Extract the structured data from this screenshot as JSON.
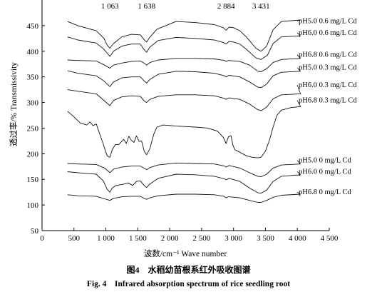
{
  "chart_data": {
    "type": "line",
    "xlabel": "波数/cm⁻¹ Wave number",
    "ylabel": "透过率/% Transmissivity",
    "xlim": [
      0,
      4500
    ],
    "ylim": [
      50,
      500
    ],
    "x_ticks": [
      "0",
      "500",
      "1 000",
      "1 500",
      "2 000",
      "2 500",
      "3 000",
      "3 500",
      "4 000",
      "4 500"
    ],
    "y_ticks": [
      "50",
      "100",
      "150",
      "200",
      "250",
      "300",
      "350",
      "400",
      "450"
    ],
    "peak_annotations": [
      {
        "label": "1 063",
        "x": 1063
      },
      {
        "label": "1 638",
        "x": 1638
      },
      {
        "label": "2 884",
        "x": 2884
      },
      {
        "label": "3 431",
        "x": 3431
      }
    ],
    "series": [
      {
        "name": "pH5.0 0.6 mg/L Cd",
        "points": [
          [
            400,
            458
          ],
          [
            560,
            450
          ],
          [
            850,
            440
          ],
          [
            970,
            425
          ],
          [
            1020,
            412
          ],
          [
            1063,
            406
          ],
          [
            1120,
            415
          ],
          [
            1250,
            428
          ],
          [
            1400,
            433
          ],
          [
            1540,
            432
          ],
          [
            1610,
            421
          ],
          [
            1640,
            418
          ],
          [
            1680,
            426
          ],
          [
            1800,
            443
          ],
          [
            2100,
            458
          ],
          [
            2400,
            456
          ],
          [
            2700,
            452
          ],
          [
            2840,
            446
          ],
          [
            2884,
            441
          ],
          [
            2930,
            447
          ],
          [
            3000,
            446
          ],
          [
            3100,
            440
          ],
          [
            3200,
            428
          ],
          [
            3350,
            406
          ],
          [
            3431,
            400
          ],
          [
            3520,
            410
          ],
          [
            3620,
            442
          ],
          [
            3750,
            458
          ],
          [
            4050,
            461
          ]
        ],
        "label_y": 455
      },
      {
        "name": "pH6.0 0.6 mg/L Cd",
        "points": [
          [
            400,
            428
          ],
          [
            560,
            422
          ],
          [
            850,
            416
          ],
          [
            960,
            405
          ],
          [
            1063,
            390
          ],
          [
            1120,
            400
          ],
          [
            1250,
            410
          ],
          [
            1400,
            414
          ],
          [
            1540,
            414
          ],
          [
            1600,
            403
          ],
          [
            1638,
            398
          ],
          [
            1690,
            408
          ],
          [
            1820,
            421
          ],
          [
            2100,
            427
          ],
          [
            2400,
            425
          ],
          [
            2700,
            422
          ],
          [
            2840,
            417
          ],
          [
            2884,
            414
          ],
          [
            2930,
            419
          ],
          [
            3000,
            418
          ],
          [
            3100,
            414
          ],
          [
            3200,
            404
          ],
          [
            3350,
            387
          ],
          [
            3431,
            384
          ],
          [
            3530,
            392
          ],
          [
            3620,
            415
          ],
          [
            3750,
            428
          ],
          [
            4050,
            430
          ]
        ],
        "label_y": 432
      },
      {
        "name": "pH6.8 0.6 mg/L Cd",
        "points": [
          [
            400,
            383
          ],
          [
            560,
            382
          ],
          [
            850,
            381
          ],
          [
            980,
            373
          ],
          [
            1063,
            367
          ],
          [
            1120,
            373
          ],
          [
            1250,
            377
          ],
          [
            1400,
            380
          ],
          [
            1540,
            381
          ],
          [
            1610,
            376
          ],
          [
            1640,
            373
          ],
          [
            1690,
            378
          ],
          [
            1820,
            383
          ],
          [
            2100,
            386
          ],
          [
            2400,
            386
          ],
          [
            2700,
            385
          ],
          [
            2860,
            382
          ],
          [
            2884,
            380
          ],
          [
            2920,
            382
          ],
          [
            3100,
            380
          ],
          [
            3250,
            373
          ],
          [
            3380,
            361
          ],
          [
            3431,
            360
          ],
          [
            3520,
            366
          ],
          [
            3620,
            378
          ],
          [
            3750,
            384
          ],
          [
            4050,
            386
          ]
        ],
        "label_y": 389
      },
      {
        "name": "pH5.0 0.3 mg/L Cd",
        "points": [
          [
            400,
            362
          ],
          [
            560,
            357
          ],
          [
            850,
            352
          ],
          [
            960,
            343
          ],
          [
            1063,
            331
          ],
          [
            1120,
            340
          ],
          [
            1250,
            348
          ],
          [
            1400,
            350
          ],
          [
            1540,
            350
          ],
          [
            1600,
            342
          ],
          [
            1638,
            338
          ],
          [
            1690,
            345
          ],
          [
            1820,
            355
          ],
          [
            2100,
            361
          ],
          [
            2400,
            360
          ],
          [
            2700,
            357
          ],
          [
            2860,
            352
          ],
          [
            2884,
            350
          ],
          [
            2930,
            353
          ],
          [
            3100,
            350
          ],
          [
            3250,
            340
          ],
          [
            3380,
            330
          ],
          [
            3431,
            329
          ],
          [
            3520,
            336
          ],
          [
            3620,
            352
          ],
          [
            3750,
            359
          ],
          [
            4050,
            361
          ]
        ],
        "label_y": 364
      },
      {
        "name": "pH6.0 0.3 mg/L Cd",
        "points": [
          [
            400,
            325
          ],
          [
            560,
            322
          ],
          [
            850,
            317
          ],
          [
            960,
            305
          ],
          [
            1063,
            294
          ],
          [
            1120,
            304
          ],
          [
            1250,
            311
          ],
          [
            1400,
            313
          ],
          [
            1540,
            312
          ],
          [
            1600,
            303
          ],
          [
            1638,
            300
          ],
          [
            1690,
            306
          ],
          [
            1820,
            312
          ],
          [
            2100,
            315
          ],
          [
            2400,
            315
          ],
          [
            2700,
            313
          ],
          [
            2860,
            308
          ],
          [
            2884,
            306
          ],
          [
            2930,
            309
          ],
          [
            3100,
            306
          ],
          [
            3250,
            297
          ],
          [
            3380,
            286
          ],
          [
            3431,
            284
          ],
          [
            3520,
            291
          ],
          [
            3620,
            307
          ],
          [
            3750,
            315
          ],
          [
            4050,
            317
          ]
        ],
        "label_y": 330
      },
      {
        "name": "pH6.8 0.3 mg/L Cd",
        "points": [
          [
            400,
            283
          ],
          [
            500,
            272
          ],
          [
            600,
            260
          ],
          [
            700,
            256
          ],
          [
            750,
            262
          ],
          [
            800,
            255
          ],
          [
            850,
            258
          ],
          [
            900,
            240
          ],
          [
            960,
            218
          ],
          [
            1020,
            196
          ],
          [
            1063,
            193
          ],
          [
            1100,
            208
          ],
          [
            1150,
            218
          ],
          [
            1200,
            218
          ],
          [
            1280,
            228
          ],
          [
            1320,
            220
          ],
          [
            1360,
            234
          ],
          [
            1400,
            226
          ],
          [
            1440,
            222
          ],
          [
            1480,
            235
          ],
          [
            1520,
            224
          ],
          [
            1560,
            225
          ],
          [
            1600,
            205
          ],
          [
            1638,
            198
          ],
          [
            1690,
            210
          ],
          [
            1750,
            238
          ],
          [
            1800,
            252
          ],
          [
            1900,
            256
          ],
          [
            2100,
            254
          ],
          [
            2400,
            252
          ],
          [
            2600,
            250
          ],
          [
            2750,
            244
          ],
          [
            2840,
            232
          ],
          [
            2884,
            220
          ],
          [
            2920,
            233
          ],
          [
            2960,
            235
          ],
          [
            2990,
            217
          ],
          [
            3020,
            208
          ],
          [
            3100,
            203
          ],
          [
            3200,
            196
          ],
          [
            3300,
            193
          ],
          [
            3380,
            192
          ],
          [
            3431,
            193
          ],
          [
            3500,
            205
          ],
          [
            3560,
            225
          ],
          [
            3620,
            252
          ],
          [
            3680,
            275
          ],
          [
            3750,
            285
          ],
          [
            3900,
            290
          ],
          [
            4050,
            292
          ]
        ],
        "label_y": 300
      },
      {
        "name": "pH5.0 0 mg/L Cd",
        "points": [
          [
            400,
            181
          ],
          [
            560,
            180
          ],
          [
            850,
            179
          ],
          [
            980,
            172
          ],
          [
            1063,
            163
          ],
          [
            1120,
            170
          ],
          [
            1250,
            174
          ],
          [
            1400,
            176
          ],
          [
            1540,
            176
          ],
          [
            1610,
            171
          ],
          [
            1640,
            169
          ],
          [
            1690,
            173
          ],
          [
            1820,
            178
          ],
          [
            2100,
            182
          ],
          [
            2400,
            181
          ],
          [
            2700,
            180
          ],
          [
            2860,
            176
          ],
          [
            2884,
            174
          ],
          [
            2930,
            177
          ],
          [
            3100,
            172
          ],
          [
            3250,
            163
          ],
          [
            3380,
            156
          ],
          [
            3431,
            155
          ],
          [
            3520,
            160
          ],
          [
            3620,
            172
          ],
          [
            3750,
            178
          ],
          [
            4050,
            180
          ]
        ],
        "label_y": 183
      },
      {
        "name": "pH6.0 0 mg/L Cd",
        "points": [
          [
            400,
            165
          ],
          [
            560,
            163
          ],
          [
            850,
            160
          ],
          [
            960,
            147
          ],
          [
            1020,
            131
          ],
          [
            1063,
            125
          ],
          [
            1100,
            133
          ],
          [
            1160,
            138
          ],
          [
            1250,
            140
          ],
          [
            1350,
            143
          ],
          [
            1420,
            138
          ],
          [
            1480,
            146
          ],
          [
            1540,
            147
          ],
          [
            1600,
            138
          ],
          [
            1638,
            134
          ],
          [
            1690,
            141
          ],
          [
            1820,
            152
          ],
          [
            2100,
            160
          ],
          [
            2400,
            159
          ],
          [
            2700,
            156
          ],
          [
            2860,
            151
          ],
          [
            2884,
            149
          ],
          [
            2930,
            152
          ],
          [
            3100,
            146
          ],
          [
            3250,
            133
          ],
          [
            3380,
            124
          ],
          [
            3431,
            123
          ],
          [
            3520,
            129
          ],
          [
            3620,
            146
          ],
          [
            3750,
            156
          ],
          [
            4050,
            159
          ]
        ],
        "label_y": 161
      },
      {
        "name": "pH6.8 0 mg/L Cd",
        "points": [
          [
            400,
            120
          ],
          [
            560,
            118
          ],
          [
            850,
            117
          ],
          [
            980,
            112
          ],
          [
            1063,
            109
          ],
          [
            1120,
            113
          ],
          [
            1250,
            116
          ],
          [
            1400,
            117
          ],
          [
            1540,
            117
          ],
          [
            1610,
            112
          ],
          [
            1640,
            111
          ],
          [
            1690,
            114
          ],
          [
            1820,
            118
          ],
          [
            2100,
            121
          ],
          [
            2400,
            121
          ],
          [
            2700,
            120
          ],
          [
            2850,
            117
          ],
          [
            2884,
            114
          ],
          [
            2920,
            116
          ],
          [
            3100,
            114
          ],
          [
            3250,
            109
          ],
          [
            3380,
            105
          ],
          [
            3431,
            105
          ],
          [
            3520,
            109
          ],
          [
            3620,
            115
          ],
          [
            3750,
            119
          ],
          [
            4050,
            121
          ]
        ],
        "label_y": 121
      }
    ]
  },
  "figure": {
    "caption_cn": "图4　水稻幼苗根系红外吸收图谱",
    "caption_en": "Fig. 4　Infrared absorption spectrum of rice seedling root"
  }
}
